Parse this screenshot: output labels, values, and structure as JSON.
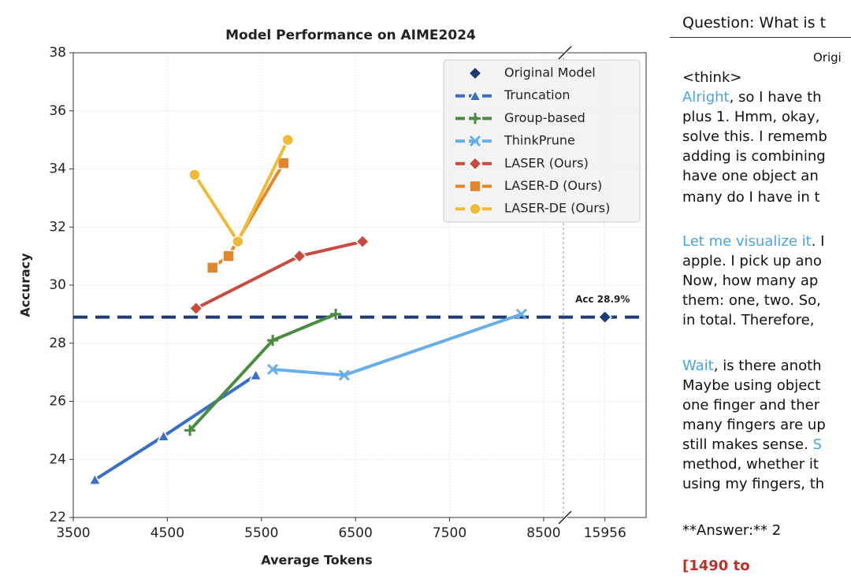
{
  "chart_data": {
    "type": "line",
    "title": "Model Performance on AIME2024",
    "xlabel": "Average Tokens",
    "ylabel": "Accuracy",
    "xlim": [
      3500,
      8710
    ],
    "xticks": [
      3500,
      4500,
      5500,
      6500,
      7500,
      8500
    ],
    "x2lim": [
      15550,
      16400
    ],
    "x2ticks": [
      15956
    ],
    "ylim": [
      22,
      38
    ],
    "yticks": [
      22,
      24,
      26,
      28,
      30,
      32,
      34,
      36,
      38
    ],
    "grid": true,
    "legend": "upper right",
    "annotation": "Acc 28.9%",
    "series": [
      {
        "name": "Original Model",
        "color": "#1f3b73",
        "marker": "diamond",
        "line": false,
        "x": [
          15956
        ],
        "values": [
          28.9
        ]
      },
      {
        "name": "Truncation",
        "color": "#3a6fc4",
        "marker": "triangle",
        "line": true,
        "x": [
          3730,
          4460,
          5440
        ],
        "values": [
          23.3,
          24.8,
          26.9
        ]
      },
      {
        "name": "Group-based",
        "color": "#4a8c3f",
        "marker": "plus",
        "line": true,
        "x": [
          4740,
          5620,
          6290
        ],
        "values": [
          25.0,
          28.1,
          29.0
        ]
      },
      {
        "name": "ThinkPrune",
        "color": "#6aaee8",
        "marker": "x",
        "line": true,
        "x": [
          5620,
          6380,
          8265
        ],
        "values": [
          27.1,
          26.9,
          29.0
        ]
      },
      {
        "name": "LASER (Ours)",
        "color": "#c94a3f",
        "marker": "diamond",
        "line": true,
        "x": [
          4805,
          5905,
          6575
        ],
        "values": [
          29.2,
          31.0,
          31.5
        ]
      },
      {
        "name": "LASER-D (Ours)",
        "color": "#e0872e",
        "marker": "square",
        "line": true,
        "x": [
          4980,
          5150,
          5735
        ],
        "values": [
          30.6,
          31.0,
          34.2
        ]
      },
      {
        "name": "LASER-DE (Ours)",
        "color": "#f0b93a",
        "marker": "circle",
        "line": true,
        "x": [
          4790,
          5250,
          5780
        ],
        "values": [
          33.8,
          31.5,
          35.0
        ]
      }
    ]
  },
  "text_panel": {
    "question": "Question: What is t",
    "subheader": "Origi",
    "lines": [
      [
        {
          "text": "<think>"
        }
      ],
      [
        {
          "text": "Alright",
          "color": "#4aa3df"
        },
        {
          "text": ", so I have th"
        }
      ],
      [
        {
          "text": "plus 1. Hmm, okay,"
        }
      ],
      [
        {
          "text": "solve this. I rememb"
        }
      ],
      [
        {
          "text": "adding is combining"
        }
      ],
      [
        {
          "text": "have one object an"
        }
      ],
      [
        {
          "text": "many do I have in t"
        }
      ],
      [
        {
          "text": "Let me visualize it",
          "color": "#4aa3df"
        },
        {
          "text": ". I"
        }
      ],
      [
        {
          "text": "apple. I pick up ano"
        }
      ],
      [
        {
          "text": "Now, how many ap"
        }
      ],
      [
        {
          "text": "them: one, two. So,"
        }
      ],
      [
        {
          "text": "in total. Therefore,"
        }
      ],
      [
        {
          "text": "Wait",
          "color": "#4aa3df"
        },
        {
          "text": ", is there anoth"
        }
      ],
      [
        {
          "text": "Maybe using object"
        }
      ],
      [
        {
          "text": "one finger and ther"
        }
      ],
      [
        {
          "text": "many fingers are up"
        }
      ],
      [
        {
          "text": "still makes sense. "
        },
        {
          "text": "S",
          "color": "#4aa3df"
        }
      ],
      [
        {
          "text": "method, whether it"
        }
      ],
      [
        {
          "text": "using my fingers, th"
        }
      ],
      [
        {
          "text": "**Answer:** 2"
        }
      ],
      [
        {
          "text": "[1490 to",
          "color": "#b5332a"
        }
      ]
    ]
  }
}
